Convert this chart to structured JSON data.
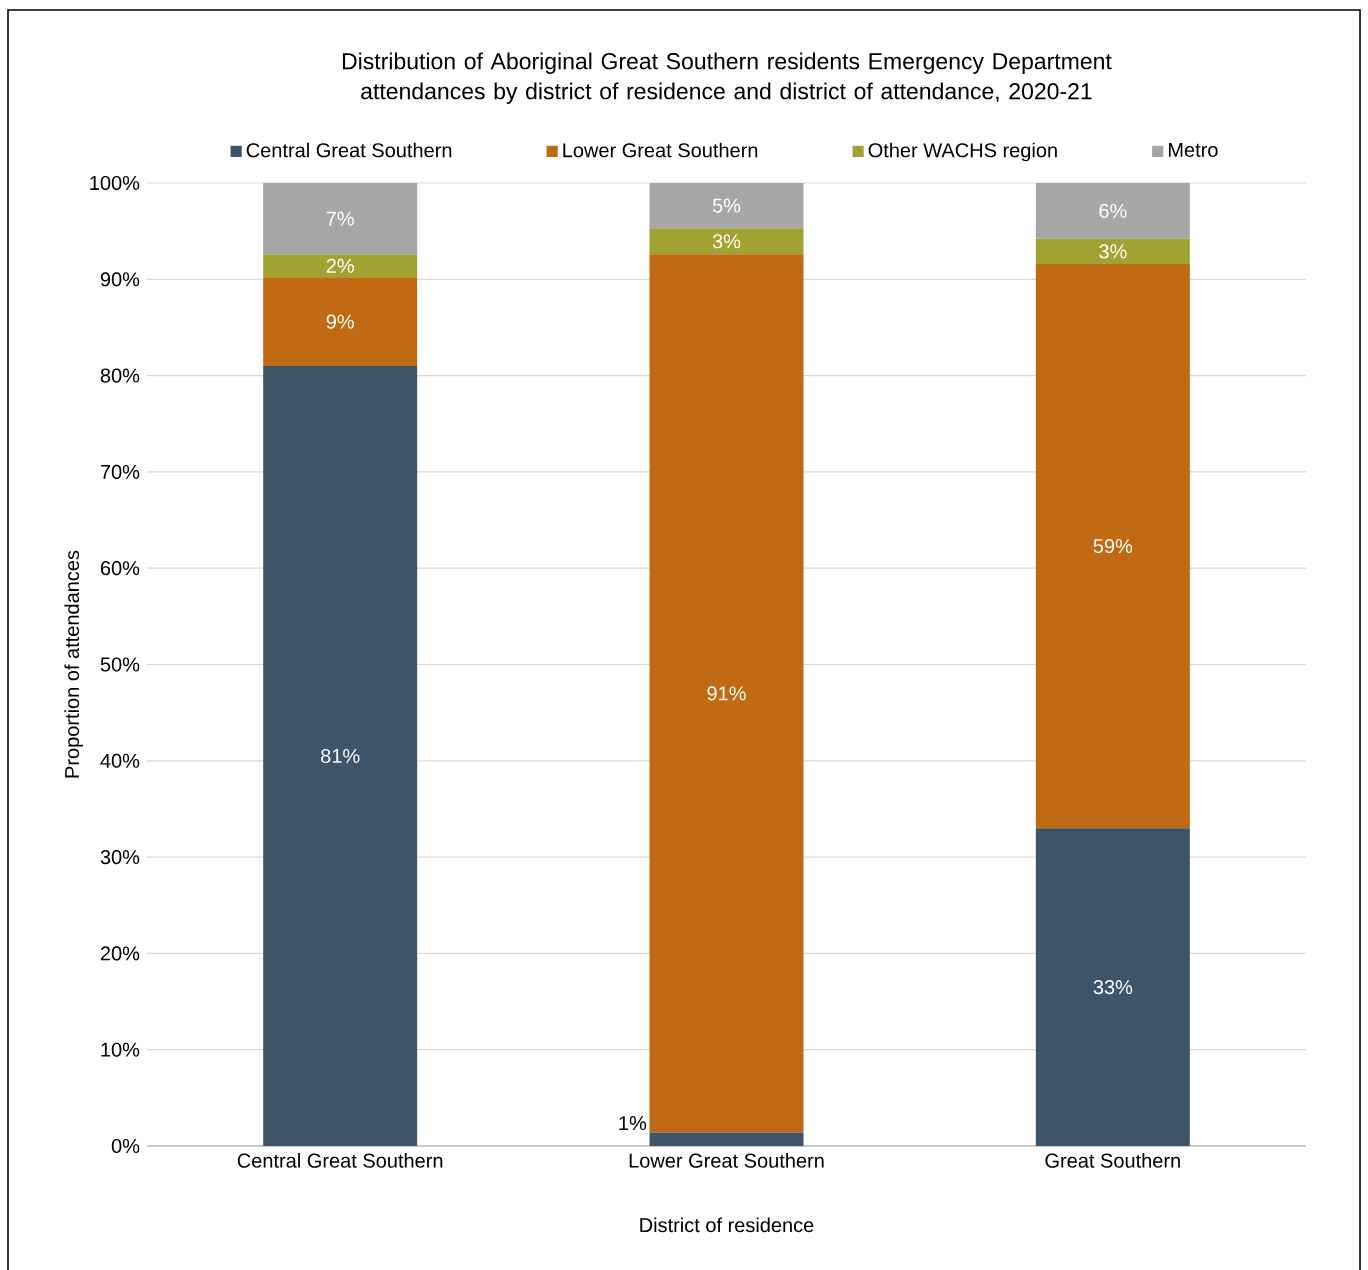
{
  "chart_data": {
    "type": "bar",
    "stacked": true,
    "title": "Distribution of Aboriginal Great Southern residents Emergency Department attendances by district of residence and district of attendance, 2020-21",
    "xlabel": "District of residence",
    "ylabel": "Proportion of attendances",
    "categories": [
      "Central Great Southern",
      "Lower Great Southern",
      "Great Southern"
    ],
    "series": [
      {
        "name": "Central Great Southern",
        "color": "#3e5569",
        "values": [
          81.0,
          1.4,
          33.0
        ],
        "value_labels": [
          "81%",
          "1%",
          "33%"
        ]
      },
      {
        "name": "Lower Great Southern",
        "color": "#c06a14",
        "values": [
          9.2,
          91.2,
          58.6
        ],
        "value_labels": [
          "9%",
          "91%",
          "59%"
        ]
      },
      {
        "name": "Other WACHS region",
        "color": "#a0a232",
        "values": [
          2.4,
          2.7,
          2.6
        ],
        "value_labels": [
          "2%",
          "3%",
          "3%"
        ]
      },
      {
        "name": "Metro",
        "color": "#a6a6a6",
        "values": [
          7.4,
          4.7,
          5.8
        ],
        "value_labels": [
          "7%",
          "5%",
          "6%"
        ]
      }
    ],
    "ylim": [
      0,
      100
    ],
    "yticks": [
      {
        "value": 0,
        "label": "0%"
      },
      {
        "value": 10,
        "label": "10%"
      },
      {
        "value": 20,
        "label": "20%"
      },
      {
        "value": 30,
        "label": "30%"
      },
      {
        "value": 40,
        "label": "40%"
      },
      {
        "value": 50,
        "label": "50%"
      },
      {
        "value": 60,
        "label": "60%"
      },
      {
        "value": 70,
        "label": "70%"
      },
      {
        "value": 80,
        "label": "80%"
      },
      {
        "value": 90,
        "label": "90%"
      },
      {
        "value": 100,
        "label": "100%"
      }
    ],
    "grid": "y",
    "legend": "top"
  }
}
